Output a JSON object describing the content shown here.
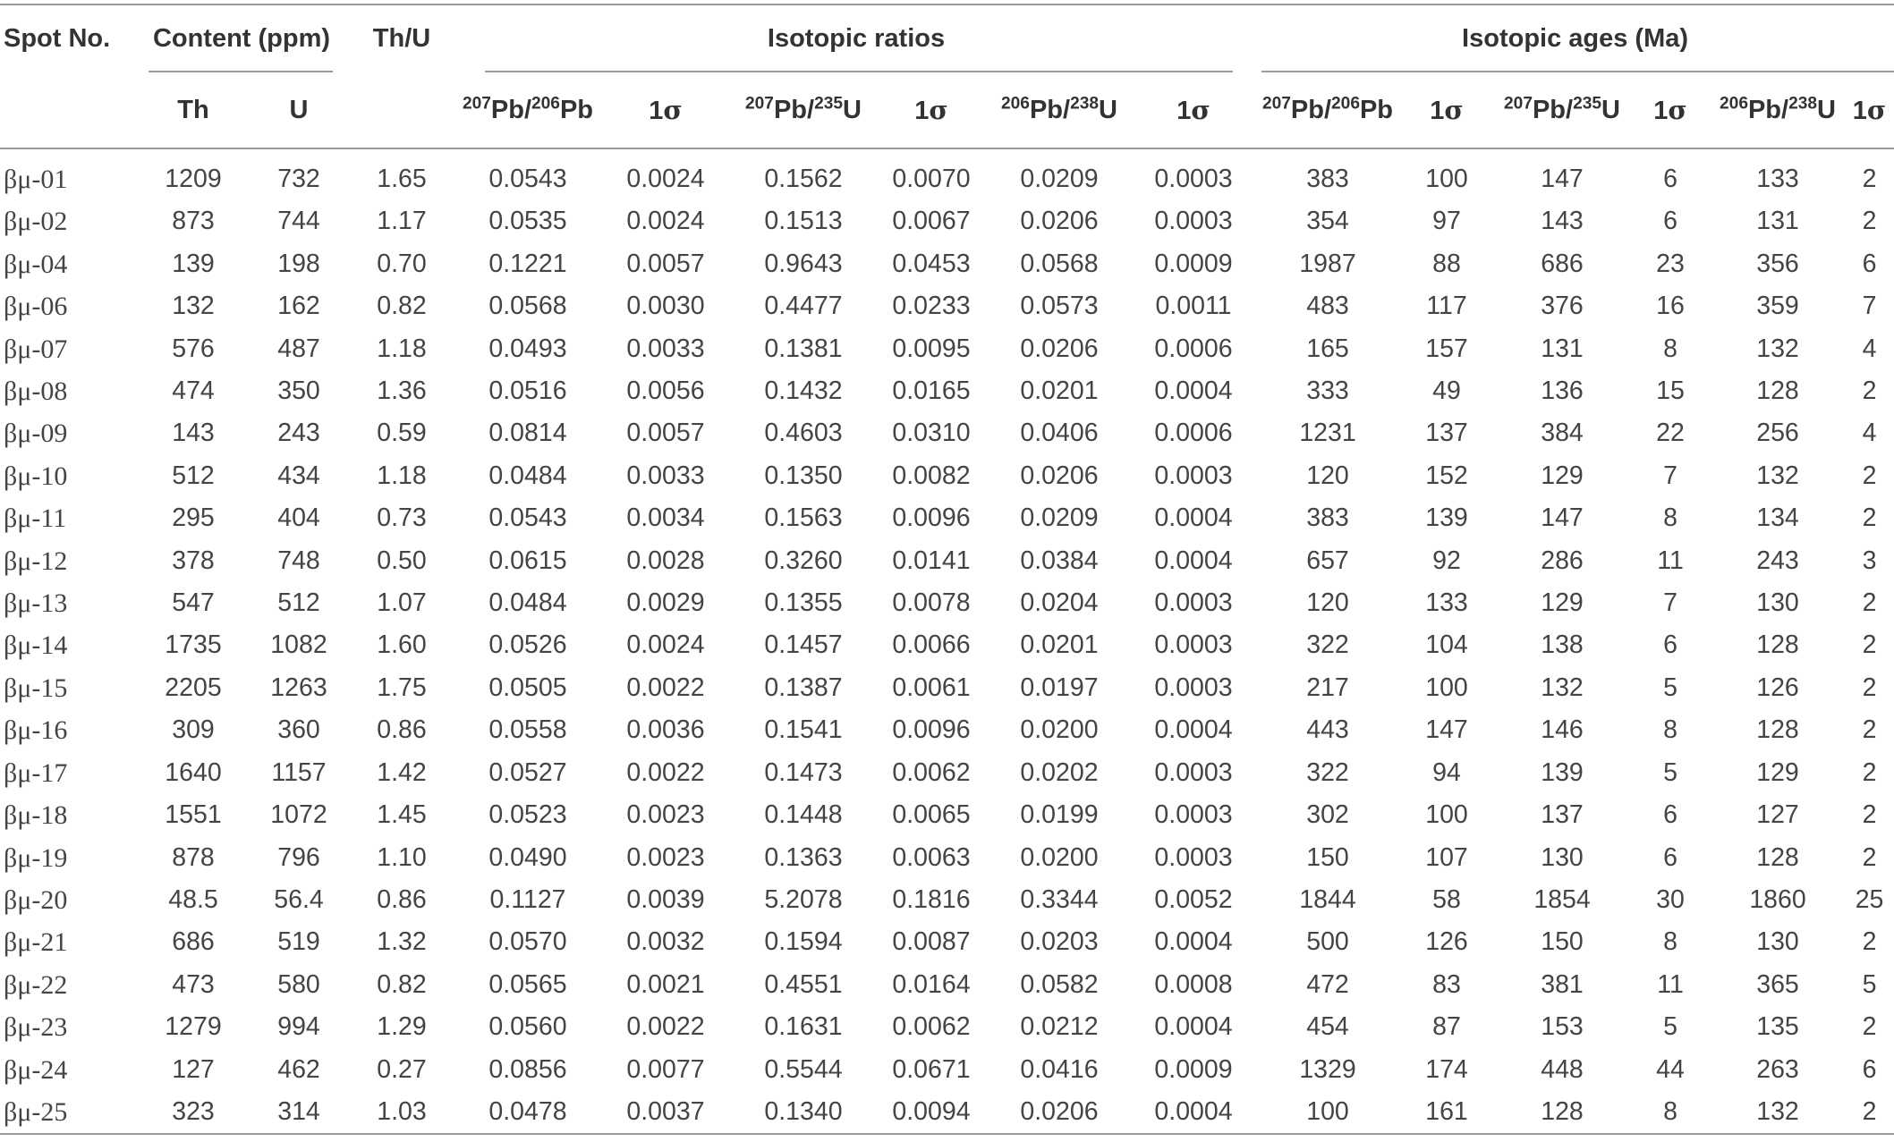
{
  "table": {
    "header": {
      "spot": "Spot No.",
      "content": "Content (ppm)",
      "thu": "Th/U",
      "ratios": "Isotopic ratios",
      "ages": "Isotopic ages (Ma)",
      "th": "Th",
      "u": "U",
      "pb207": "207",
      "pb206": "206",
      "pb": "Pb",
      "u235": "235",
      "u238": "238",
      "u_sym": "U",
      "one": "1",
      "sigma": "σ"
    },
    "rows": [
      [
        "βμ-01",
        "1209",
        "732",
        "1.65",
        "0.0543",
        "0.0024",
        "0.1562",
        "0.0070",
        "0.0209",
        "0.0003",
        "383",
        "100",
        "147",
        "6",
        "133",
        "2"
      ],
      [
        "βμ-02",
        "873",
        "744",
        "1.17",
        "0.0535",
        "0.0024",
        "0.1513",
        "0.0067",
        "0.0206",
        "0.0003",
        "354",
        "97",
        "143",
        "6",
        "131",
        "2"
      ],
      [
        "βμ-04",
        "139",
        "198",
        "0.70",
        "0.1221",
        "0.0057",
        "0.9643",
        "0.0453",
        "0.0568",
        "0.0009",
        "1987",
        "88",
        "686",
        "23",
        "356",
        "6"
      ],
      [
        "βμ-06",
        "132",
        "162",
        "0.82",
        "0.0568",
        "0.0030",
        "0.4477",
        "0.0233",
        "0.0573",
        "0.0011",
        "483",
        "117",
        "376",
        "16",
        "359",
        "7"
      ],
      [
        "βμ-07",
        "576",
        "487",
        "1.18",
        "0.0493",
        "0.0033",
        "0.1381",
        "0.0095",
        "0.0206",
        "0.0006",
        "165",
        "157",
        "131",
        "8",
        "132",
        "4"
      ],
      [
        "βμ-08",
        "474",
        "350",
        "1.36",
        "0.0516",
        "0.0056",
        "0.1432",
        "0.0165",
        "0.0201",
        "0.0004",
        "333",
        "49",
        "136",
        "15",
        "128",
        "2"
      ],
      [
        "βμ-09",
        "143",
        "243",
        "0.59",
        "0.0814",
        "0.0057",
        "0.4603",
        "0.0310",
        "0.0406",
        "0.0006",
        "1231",
        "137",
        "384",
        "22",
        "256",
        "4"
      ],
      [
        "βμ-10",
        "512",
        "434",
        "1.18",
        "0.0484",
        "0.0033",
        "0.1350",
        "0.0082",
        "0.0206",
        "0.0003",
        "120",
        "152",
        "129",
        "7",
        "132",
        "2"
      ],
      [
        "βμ-11",
        "295",
        "404",
        "0.73",
        "0.0543",
        "0.0034",
        "0.1563",
        "0.0096",
        "0.0209",
        "0.0004",
        "383",
        "139",
        "147",
        "8",
        "134",
        "2"
      ],
      [
        "βμ-12",
        "378",
        "748",
        "0.50",
        "0.0615",
        "0.0028",
        "0.3260",
        "0.0141",
        "0.0384",
        "0.0004",
        "657",
        "92",
        "286",
        "11",
        "243",
        "3"
      ],
      [
        "βμ-13",
        "547",
        "512",
        "1.07",
        "0.0484",
        "0.0029",
        "0.1355",
        "0.0078",
        "0.0204",
        "0.0003",
        "120",
        "133",
        "129",
        "7",
        "130",
        "2"
      ],
      [
        "βμ-14",
        "1735",
        "1082",
        "1.60",
        "0.0526",
        "0.0024",
        "0.1457",
        "0.0066",
        "0.0201",
        "0.0003",
        "322",
        "104",
        "138",
        "6",
        "128",
        "2"
      ],
      [
        "βμ-15",
        "2205",
        "1263",
        "1.75",
        "0.0505",
        "0.0022",
        "0.1387",
        "0.0061",
        "0.0197",
        "0.0003",
        "217",
        "100",
        "132",
        "5",
        "126",
        "2"
      ],
      [
        "βμ-16",
        "309",
        "360",
        "0.86",
        "0.0558",
        "0.0036",
        "0.1541",
        "0.0096",
        "0.0200",
        "0.0004",
        "443",
        "147",
        "146",
        "8",
        "128",
        "2"
      ],
      [
        "βμ-17",
        "1640",
        "1157",
        "1.42",
        "0.0527",
        "0.0022",
        "0.1473",
        "0.0062",
        "0.0202",
        "0.0003",
        "322",
        "94",
        "139",
        "5",
        "129",
        "2"
      ],
      [
        "βμ-18",
        "1551",
        "1072",
        "1.45",
        "0.0523",
        "0.0023",
        "0.1448",
        "0.0065",
        "0.0199",
        "0.0003",
        "302",
        "100",
        "137",
        "6",
        "127",
        "2"
      ],
      [
        "βμ-19",
        "878",
        "796",
        "1.10",
        "0.0490",
        "0.0023",
        "0.1363",
        "0.0063",
        "0.0200",
        "0.0003",
        "150",
        "107",
        "130",
        "6",
        "128",
        "2"
      ],
      [
        "βμ-20",
        "48.5",
        "56.4",
        "0.86",
        "0.1127",
        "0.0039",
        "5.2078",
        "0.1816",
        "0.3344",
        "0.0052",
        "1844",
        "58",
        "1854",
        "30",
        "1860",
        "25"
      ],
      [
        "βμ-21",
        "686",
        "519",
        "1.32",
        "0.0570",
        "0.0032",
        "0.1594",
        "0.0087",
        "0.0203",
        "0.0004",
        "500",
        "126",
        "150",
        "8",
        "130",
        "2"
      ],
      [
        "βμ-22",
        "473",
        "580",
        "0.82",
        "0.0565",
        "0.0021",
        "0.4551",
        "0.0164",
        "0.0582",
        "0.0008",
        "472",
        "83",
        "381",
        "11",
        "365",
        "5"
      ],
      [
        "βμ-23",
        "1279",
        "994",
        "1.29",
        "0.0560",
        "0.0022",
        "0.1631",
        "0.0062",
        "0.0212",
        "0.0004",
        "454",
        "87",
        "153",
        "5",
        "135",
        "2"
      ],
      [
        "βμ-24",
        "127",
        "462",
        "0.27",
        "0.0856",
        "0.0077",
        "0.5544",
        "0.0671",
        "0.0416",
        "0.0009",
        "1329",
        "174",
        "448",
        "44",
        "263",
        "6"
      ],
      [
        "βμ-25",
        "323",
        "314",
        "1.03",
        "0.0478",
        "0.0037",
        "0.1340",
        "0.0094",
        "0.0206",
        "0.0004",
        "100",
        "161",
        "128",
        "8",
        "132",
        "2"
      ]
    ]
  }
}
